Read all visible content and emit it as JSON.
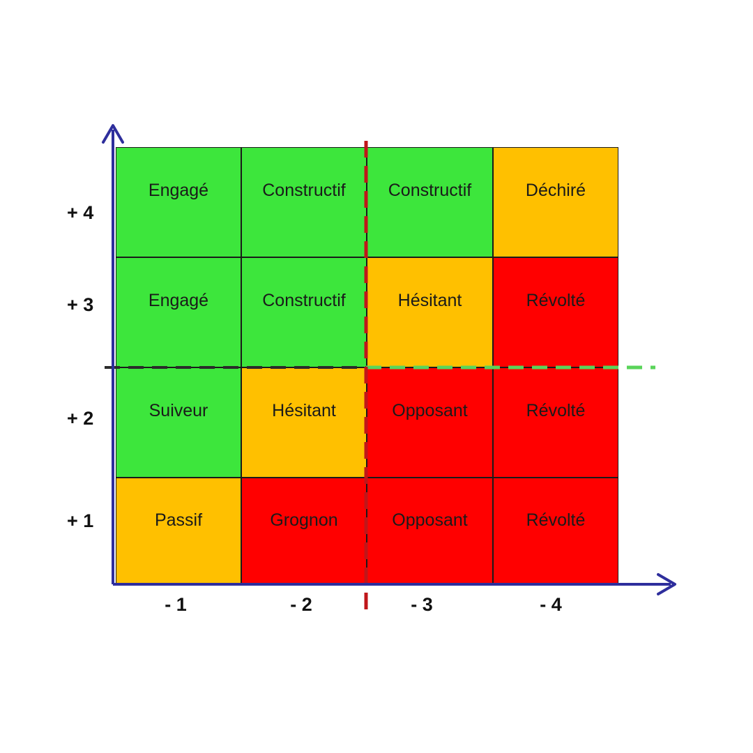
{
  "colors": {
    "green": "#3de63c",
    "orange": "#ffc000",
    "red": "#ff0000",
    "axis": "#2e2e9c",
    "vertical_divider": "#c0161a",
    "horizontal_divider_left": "#2b2b2b",
    "horizontal_divider_right": "#5ad45a"
  },
  "y_axis": {
    "labels": [
      "+ 4",
      "+ 3",
      "+ 2",
      "+ 1"
    ]
  },
  "x_axis": {
    "labels": [
      "- 1",
      "- 2",
      "- 3",
      "- 4"
    ]
  },
  "grid": {
    "rows": [
      [
        {
          "label": "Engagé",
          "color": "green"
        },
        {
          "label": "Constructif",
          "color": "green"
        },
        {
          "label": "Constructif",
          "color": "green"
        },
        {
          "label": "Déchiré",
          "color": "orange"
        }
      ],
      [
        {
          "label": "Engagé",
          "color": "green"
        },
        {
          "label": "Constructif",
          "color": "green"
        },
        {
          "label": "Hésitant",
          "color": "orange"
        },
        {
          "label": "Révolté",
          "color": "red"
        }
      ],
      [
        {
          "label": "Suiveur",
          "color": "green"
        },
        {
          "label": "Hésitant",
          "color": "orange"
        },
        {
          "label": "Opposant",
          "color": "red"
        },
        {
          "label": "Révolté",
          "color": "red"
        }
      ],
      [
        {
          "label": "Passif",
          "color": "orange"
        },
        {
          "label": "Grognon",
          "color": "red"
        },
        {
          "label": "Opposant",
          "color": "red"
        },
        {
          "label": "Révolté",
          "color": "red"
        }
      ]
    ]
  }
}
